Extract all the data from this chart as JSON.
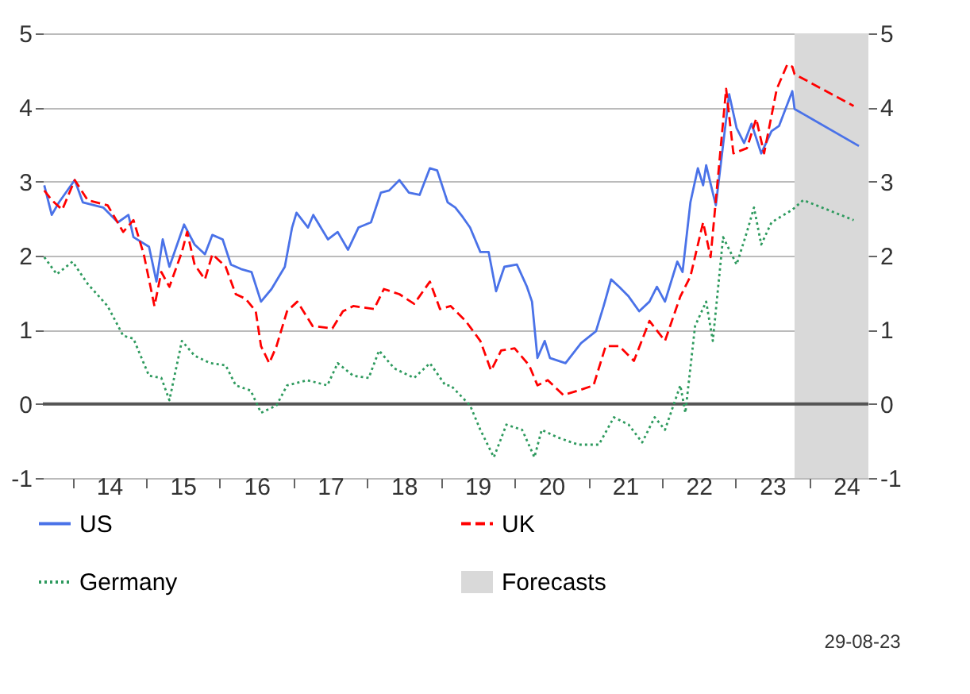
{
  "chart_data": {
    "type": "line",
    "xlim": [
      "2013-08-07",
      "2024-10-19"
    ],
    "xticks": [
      {
        "value": "2014-01-01",
        "label": null
      },
      {
        "value": "2014-07-01",
        "label": "14"
      },
      {
        "value": "2015-01-01",
        "label": null
      },
      {
        "value": "2015-07-01",
        "label": "15"
      },
      {
        "value": "2016-01-01",
        "label": null
      },
      {
        "value": "2016-07-01",
        "label": "16"
      },
      {
        "value": "2017-01-01",
        "label": null
      },
      {
        "value": "2017-07-01",
        "label": "17"
      },
      {
        "value": "2018-01-01",
        "label": null
      },
      {
        "value": "2018-07-01",
        "label": "18"
      },
      {
        "value": "2019-01-01",
        "label": null
      },
      {
        "value": "2019-07-01",
        "label": "19"
      },
      {
        "value": "2020-01-01",
        "label": null
      },
      {
        "value": "2020-07-01",
        "label": "20"
      },
      {
        "value": "2021-01-01",
        "label": null
      },
      {
        "value": "2021-07-01",
        "label": "21"
      },
      {
        "value": "2022-01-01",
        "label": null
      },
      {
        "value": "2022-07-01",
        "label": "22"
      },
      {
        "value": "2023-01-01",
        "label": null
      },
      {
        "value": "2023-07-01",
        "label": "23"
      },
      {
        "value": "2024-01-01",
        "label": null
      },
      {
        "value": "2024-07-01",
        "label": "24"
      }
    ],
    "ylim": [
      -1,
      5
    ],
    "yticks": [
      -1,
      0,
      1,
      2,
      3,
      4,
      5
    ],
    "y2lim": [
      -1,
      5
    ],
    "y2ticks": [
      -1,
      0,
      1,
      2,
      3,
      4,
      5
    ],
    "grid": "y",
    "legend": "bottom",
    "series": [
      {
        "name": "US",
        "color": "#4a72e8",
        "line_style": "solid",
        "x": [
          "2013-08-14",
          "2013-09-20",
          "2013-10-26",
          "2014-01-12",
          "2014-02-21",
          "2014-06-02",
          "2014-08-14",
          "2014-10-05",
          "2014-10-30",
          "2015-01-15",
          "2015-02-21",
          "2015-03-24",
          "2015-04-26",
          "2015-07-08",
          "2015-08-29",
          "2015-10-19",
          "2015-11-25",
          "2016-01-15",
          "2016-02-25",
          "2016-04-15",
          "2016-06-06",
          "2016-07-23",
          "2016-09-13",
          "2016-11-18",
          "2016-12-24",
          "2017-01-15",
          "2017-03-13",
          "2017-04-08",
          "2017-06-20",
          "2017-08-07",
          "2017-09-27",
          "2017-11-18",
          "2018-01-19",
          "2018-03-09",
          "2018-04-19",
          "2018-06-09",
          "2018-07-26",
          "2018-09-17",
          "2018-11-07",
          "2018-12-13",
          "2019-02-03",
          "2019-03-13",
          "2019-04-19",
          "2019-05-25",
          "2019-07-15",
          "2019-08-25",
          "2019-10-01",
          "2019-11-11",
          "2020-01-12",
          "2020-03-02",
          "2020-03-27",
          "2020-04-23",
          "2020-05-29",
          "2020-06-24",
          "2020-09-09",
          "2020-11-25",
          "2021-02-07",
          "2021-03-17",
          "2021-04-23",
          "2021-06-02",
          "2021-07-19",
          "2021-09-09",
          "2021-10-30",
          "2021-12-06",
          "2022-01-15",
          "2022-03-17",
          "2022-04-12",
          "2022-05-21",
          "2022-06-27",
          "2022-07-23",
          "2022-08-07",
          "2022-09-24",
          "2022-11-29",
          "2023-01-05",
          "2023-02-11",
          "2023-03-20",
          "2023-05-07",
          "2023-06-27",
          "2023-08-03",
          "2023-10-08",
          "2023-10-19",
          "2024-09-02"
        ],
        "values": [
          2.95,
          2.55,
          2.72,
          3.02,
          2.72,
          2.65,
          2.45,
          2.55,
          2.25,
          2.12,
          1.65,
          2.22,
          1.85,
          2.42,
          2.15,
          2.02,
          2.28,
          2.22,
          1.88,
          1.82,
          1.78,
          1.38,
          1.55,
          1.85,
          2.38,
          2.58,
          2.38,
          2.55,
          2.22,
          2.32,
          2.08,
          2.38,
          2.45,
          2.85,
          2.88,
          3.02,
          2.85,
          2.82,
          3.18,
          3.15,
          2.72,
          2.65,
          2.52,
          2.38,
          2.05,
          2.05,
          1.52,
          1.85,
          1.88,
          1.58,
          1.38,
          0.62,
          0.85,
          0.62,
          0.55,
          0.82,
          0.98,
          1.32,
          1.68,
          1.58,
          1.45,
          1.25,
          1.38,
          1.58,
          1.38,
          1.92,
          1.78,
          2.72,
          3.18,
          2.95,
          3.22,
          2.68,
          4.18,
          3.72,
          3.52,
          3.78,
          3.38,
          3.68,
          3.75,
          4.22,
          3.98,
          3.48
        ]
      },
      {
        "name": "UK",
        "color": "#ff0000",
        "line_style": "dashed",
        "x": [
          "2013-08-14",
          "2013-09-20",
          "2013-11-11",
          "2014-01-12",
          "2014-03-17",
          "2014-06-24",
          "2014-09-09",
          "2014-10-30",
          "2014-12-20",
          "2015-02-11",
          "2015-03-17",
          "2015-04-26",
          "2015-06-27",
          "2015-07-23",
          "2015-08-29",
          "2015-10-19",
          "2015-11-25",
          "2016-01-30",
          "2016-03-20",
          "2016-05-07",
          "2016-06-27",
          "2016-07-23",
          "2016-09-02",
          "2016-10-08",
          "2016-11-29",
          "2017-01-19",
          "2017-04-05",
          "2017-07-12",
          "2017-09-02",
          "2017-10-23",
          "2018-02-03",
          "2018-03-24",
          "2018-06-09",
          "2018-08-21",
          "2018-11-07",
          "2018-12-27",
          "2019-02-18",
          "2019-05-03",
          "2019-07-15",
          "2019-09-06",
          "2019-10-26",
          "2020-01-01",
          "2020-03-13",
          "2020-04-23",
          "2020-06-13",
          "2020-08-29",
          "2020-11-11",
          "2021-01-26",
          "2021-03-27",
          "2021-06-02",
          "2021-08-14",
          "2021-10-30",
          "2022-01-15",
          "2022-04-01",
          "2022-05-21",
          "2022-07-23",
          "2022-08-29",
          "2022-11-14",
          "2022-12-20",
          "2023-02-25",
          "2023-04-12",
          "2023-05-21",
          "2023-07-23",
          "2023-09-13",
          "2023-10-08",
          "2023-10-19",
          "2024-08-07"
        ],
        "values": [
          2.88,
          2.75,
          2.62,
          3.02,
          2.75,
          2.68,
          2.32,
          2.48,
          2.02,
          1.32,
          1.78,
          1.58,
          2.05,
          2.32,
          1.88,
          1.68,
          2.02,
          1.85,
          1.48,
          1.42,
          1.25,
          0.78,
          0.55,
          0.78,
          1.25,
          1.38,
          1.05,
          1.02,
          1.25,
          1.32,
          1.28,
          1.55,
          1.48,
          1.35,
          1.65,
          1.28,
          1.32,
          1.12,
          0.85,
          0.45,
          0.72,
          0.75,
          0.52,
          0.25,
          0.32,
          0.12,
          0.18,
          0.25,
          0.78,
          0.78,
          0.58,
          1.12,
          0.85,
          1.45,
          1.72,
          2.45,
          1.98,
          4.25,
          3.38,
          3.45,
          3.85,
          3.38,
          4.25,
          4.58,
          4.55,
          4.45,
          4.02
        ]
      },
      {
        "name": "Germany",
        "color": "#2e9a5e",
        "line_style": "dotted",
        "x": [
          "2013-08-14",
          "2013-10-15",
          "2014-01-01",
          "2014-03-17",
          "2014-06-24",
          "2014-09-09",
          "2014-10-30",
          "2015-01-15",
          "2015-03-17",
          "2015-04-26",
          "2015-06-27",
          "2015-08-29",
          "2015-11-14",
          "2016-01-30",
          "2016-03-20",
          "2016-06-02",
          "2016-07-23",
          "2016-10-08",
          "2016-11-29",
          "2017-03-09",
          "2017-06-17",
          "2017-08-07",
          "2017-10-23",
          "2018-01-08",
          "2018-02-28",
          "2018-05-14",
          "2018-08-21",
          "2018-11-07",
          "2019-01-23",
          "2019-02-18",
          "2019-05-25",
          "2019-07-15",
          "2019-09-20",
          "2019-11-21",
          "2020-02-07",
          "2020-04-08",
          "2020-05-14",
          "2020-07-30",
          "2020-11-11",
          "2021-02-21",
          "2021-05-07",
          "2021-07-19",
          "2021-09-24",
          "2021-11-25",
          "2022-01-15",
          "2022-04-01",
          "2022-04-26",
          "2022-06-13",
          "2022-08-07",
          "2022-09-09",
          "2022-10-30",
          "2023-01-05",
          "2023-02-25",
          "2023-04-01",
          "2023-05-07",
          "2023-06-27",
          "2023-10-08",
          "2023-12-01",
          "2024-08-07"
        ],
        "values": [
          1.98,
          1.75,
          1.92,
          1.62,
          1.32,
          0.92,
          0.88,
          0.38,
          0.35,
          0.05,
          0.85,
          0.65,
          0.55,
          0.52,
          0.25,
          0.18,
          -0.12,
          -0.02,
          0.25,
          0.32,
          0.25,
          0.55,
          0.38,
          0.35,
          0.72,
          0.48,
          0.35,
          0.55,
          0.25,
          0.25,
          -0.02,
          -0.35,
          -0.72,
          -0.28,
          -0.35,
          -0.72,
          -0.35,
          -0.45,
          -0.55,
          -0.55,
          -0.18,
          -0.28,
          -0.52,
          -0.18,
          -0.35,
          0.25,
          -0.12,
          1.05,
          1.38,
          0.85,
          2.25,
          1.88,
          2.32,
          2.65,
          2.15,
          2.45,
          2.62,
          2.75,
          2.48
        ]
      }
    ],
    "ref_lines": [
      {
        "axis": "y",
        "value": 0,
        "color": "#555555"
      }
    ],
    "bands": [
      {
        "axis": "x",
        "from": "2023-10-19",
        "to": "2024-10-19",
        "label": "Forecasts",
        "color": "#d9d9d9"
      }
    ],
    "annotations": [
      "29-08-23"
    ]
  }
}
